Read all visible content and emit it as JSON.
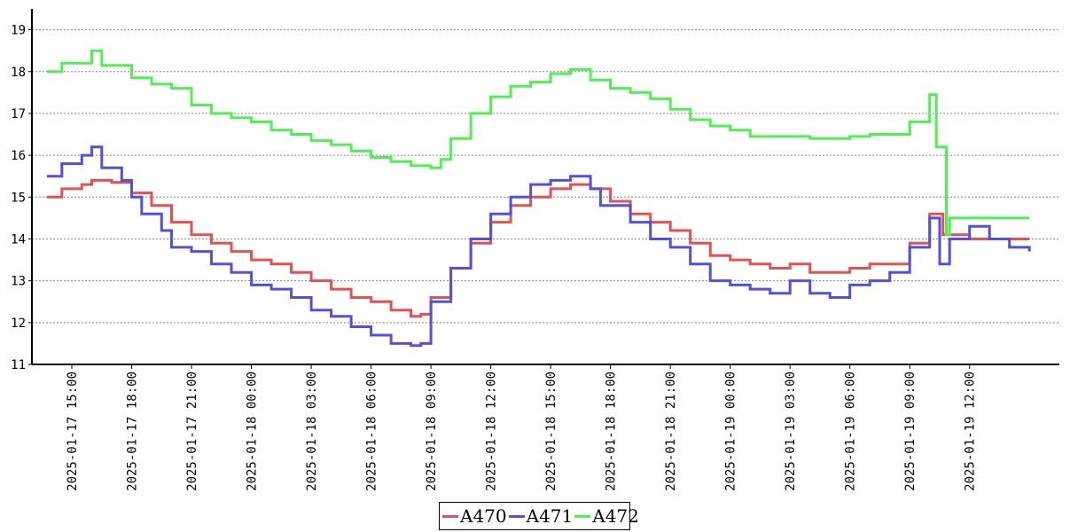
{
  "chart_data": {
    "type": "line",
    "title": "",
    "xlabel": "",
    "ylabel": "",
    "ylim": [
      11,
      19.5
    ],
    "yticks": [
      11,
      12,
      13,
      14,
      15,
      16,
      17,
      18,
      19
    ],
    "y_grid": true,
    "xlim": [
      "2025-01-17 13:00",
      "2025-01-19 16:30"
    ],
    "xticks": [
      "2025-01-17 15:00",
      "2025-01-17 18:00",
      "2025-01-17 21:00",
      "2025-01-18 00:00",
      "2025-01-18 03:00",
      "2025-01-18 06:00",
      "2025-01-18 09:00",
      "2025-01-18 12:00",
      "2025-01-18 15:00",
      "2025-01-18 18:00",
      "2025-01-18 21:00",
      "2025-01-19 00:00",
      "2025-01-19 03:00",
      "2025-01-19 06:00",
      "2025-01-19 09:00",
      "2025-01-19 12:00"
    ],
    "legend_position": "bottom-center",
    "colors": {
      "A470": "#e65050",
      "A471": "#5050e6",
      "A472": "#50f050"
    },
    "series": [
      {
        "name": "A470",
        "points": [
          [
            "2025-01-17 13:45",
            15.0
          ],
          [
            "2025-01-17 14:30",
            15.2
          ],
          [
            "2025-01-17 15:30",
            15.3
          ],
          [
            "2025-01-17 16:00",
            15.4
          ],
          [
            "2025-01-17 17:00",
            15.35
          ],
          [
            "2025-01-17 18:00",
            15.1
          ],
          [
            "2025-01-17 19:00",
            14.8
          ],
          [
            "2025-01-17 20:00",
            14.4
          ],
          [
            "2025-01-17 21:00",
            14.1
          ],
          [
            "2025-01-17 22:00",
            13.9
          ],
          [
            "2025-01-17 23:00",
            13.7
          ],
          [
            "2025-01-18 00:00",
            13.5
          ],
          [
            "2025-01-18 01:00",
            13.4
          ],
          [
            "2025-01-18 02:00",
            13.2
          ],
          [
            "2025-01-18 03:00",
            13.0
          ],
          [
            "2025-01-18 04:00",
            12.8
          ],
          [
            "2025-01-18 05:00",
            12.6
          ],
          [
            "2025-01-18 06:00",
            12.5
          ],
          [
            "2025-01-18 07:00",
            12.3
          ],
          [
            "2025-01-18 08:00",
            12.15
          ],
          [
            "2025-01-18 08:30",
            12.2
          ],
          [
            "2025-01-18 09:00",
            12.6
          ],
          [
            "2025-01-18 10:00",
            13.3
          ],
          [
            "2025-01-18 11:00",
            13.9
          ],
          [
            "2025-01-18 12:00",
            14.4
          ],
          [
            "2025-01-18 13:00",
            14.8
          ],
          [
            "2025-01-18 14:00",
            15.0
          ],
          [
            "2025-01-18 15:00",
            15.2
          ],
          [
            "2025-01-18 16:00",
            15.3
          ],
          [
            "2025-01-18 17:00",
            15.2
          ],
          [
            "2025-01-18 18:00",
            14.9
          ],
          [
            "2025-01-18 19:00",
            14.6
          ],
          [
            "2025-01-18 20:00",
            14.4
          ],
          [
            "2025-01-18 21:00",
            14.2
          ],
          [
            "2025-01-18 22:00",
            13.9
          ],
          [
            "2025-01-18 23:00",
            13.6
          ],
          [
            "2025-01-19 00:00",
            13.5
          ],
          [
            "2025-01-19 01:00",
            13.4
          ],
          [
            "2025-01-19 02:00",
            13.3
          ],
          [
            "2025-01-19 03:00",
            13.4
          ],
          [
            "2025-01-19 04:00",
            13.2
          ],
          [
            "2025-01-19 05:00",
            13.2
          ],
          [
            "2025-01-19 06:00",
            13.3
          ],
          [
            "2025-01-19 07:00",
            13.4
          ],
          [
            "2025-01-19 08:00",
            13.4
          ],
          [
            "2025-01-19 09:00",
            13.9
          ],
          [
            "2025-01-19 10:00",
            14.6
          ],
          [
            "2025-01-19 10:40",
            14.1
          ],
          [
            "2025-01-19 12:00",
            14.0
          ],
          [
            "2025-01-19 14:00",
            14.0
          ],
          [
            "2025-01-19 15:00",
            14.0
          ]
        ]
      },
      {
        "name": "A471",
        "points": [
          [
            "2025-01-17 13:45",
            15.5
          ],
          [
            "2025-01-17 14:30",
            15.8
          ],
          [
            "2025-01-17 15:30",
            16.0
          ],
          [
            "2025-01-17 16:00",
            16.2
          ],
          [
            "2025-01-17 16:30",
            15.7
          ],
          [
            "2025-01-17 17:30",
            15.4
          ],
          [
            "2025-01-17 18:00",
            15.0
          ],
          [
            "2025-01-17 18:30",
            14.6
          ],
          [
            "2025-01-17 19:30",
            14.2
          ],
          [
            "2025-01-17 20:00",
            13.8
          ],
          [
            "2025-01-17 21:00",
            13.7
          ],
          [
            "2025-01-17 22:00",
            13.4
          ],
          [
            "2025-01-17 23:00",
            13.2
          ],
          [
            "2025-01-18 00:00",
            12.9
          ],
          [
            "2025-01-18 01:00",
            12.8
          ],
          [
            "2025-01-18 02:00",
            12.6
          ],
          [
            "2025-01-18 03:00",
            12.3
          ],
          [
            "2025-01-18 04:00",
            12.15
          ],
          [
            "2025-01-18 05:00",
            11.9
          ],
          [
            "2025-01-18 06:00",
            11.7
          ],
          [
            "2025-01-18 07:00",
            11.5
          ],
          [
            "2025-01-18 08:00",
            11.45
          ],
          [
            "2025-01-18 08:30",
            11.5
          ],
          [
            "2025-01-18 09:00",
            12.5
          ],
          [
            "2025-01-18 10:00",
            13.3
          ],
          [
            "2025-01-18 11:00",
            14.0
          ],
          [
            "2025-01-18 12:00",
            14.6
          ],
          [
            "2025-01-18 13:00",
            15.0
          ],
          [
            "2025-01-18 14:00",
            15.3
          ],
          [
            "2025-01-18 15:00",
            15.4
          ],
          [
            "2025-01-18 16:00",
            15.5
          ],
          [
            "2025-01-18 17:00",
            15.2
          ],
          [
            "2025-01-18 17:30",
            14.8
          ],
          [
            "2025-01-18 19:00",
            14.4
          ],
          [
            "2025-01-18 20:00",
            14.0
          ],
          [
            "2025-01-18 21:00",
            13.8
          ],
          [
            "2025-01-18 22:00",
            13.4
          ],
          [
            "2025-01-18 23:00",
            13.0
          ],
          [
            "2025-01-19 00:00",
            12.9
          ],
          [
            "2025-01-19 01:00",
            12.8
          ],
          [
            "2025-01-19 02:00",
            12.7
          ],
          [
            "2025-01-19 03:00",
            13.0
          ],
          [
            "2025-01-19 04:00",
            12.7
          ],
          [
            "2025-01-19 05:00",
            12.6
          ],
          [
            "2025-01-19 06:00",
            12.9
          ],
          [
            "2025-01-19 07:00",
            13.0
          ],
          [
            "2025-01-19 08:00",
            13.2
          ],
          [
            "2025-01-19 09:00",
            13.8
          ],
          [
            "2025-01-19 10:00",
            14.5
          ],
          [
            "2025-01-19 10:30",
            13.4
          ],
          [
            "2025-01-19 11:00",
            14.0
          ],
          [
            "2025-01-19 12:00",
            14.3
          ],
          [
            "2025-01-19 13:00",
            14.0
          ],
          [
            "2025-01-19 14:00",
            13.8
          ],
          [
            "2025-01-19 15:00",
            13.7
          ]
        ]
      },
      {
        "name": "A472",
        "points": [
          [
            "2025-01-17 13:45",
            18.0
          ],
          [
            "2025-01-17 14:30",
            18.2
          ],
          [
            "2025-01-17 15:00",
            18.2
          ],
          [
            "2025-01-17 16:00",
            18.5
          ],
          [
            "2025-01-17 16:30",
            18.15
          ],
          [
            "2025-01-17 18:00",
            17.85
          ],
          [
            "2025-01-17 19:00",
            17.7
          ],
          [
            "2025-01-17 20:00",
            17.6
          ],
          [
            "2025-01-17 21:00",
            17.2
          ],
          [
            "2025-01-17 22:00",
            17.0
          ],
          [
            "2025-01-17 23:00",
            16.9
          ],
          [
            "2025-01-18 00:00",
            16.8
          ],
          [
            "2025-01-18 01:00",
            16.6
          ],
          [
            "2025-01-18 02:00",
            16.5
          ],
          [
            "2025-01-18 03:00",
            16.35
          ],
          [
            "2025-01-18 04:00",
            16.25
          ],
          [
            "2025-01-18 05:00",
            16.1
          ],
          [
            "2025-01-18 06:00",
            15.95
          ],
          [
            "2025-01-18 07:00",
            15.85
          ],
          [
            "2025-01-18 08:00",
            15.75
          ],
          [
            "2025-01-18 09:00",
            15.7
          ],
          [
            "2025-01-18 09:30",
            15.9
          ],
          [
            "2025-01-18 10:00",
            16.4
          ],
          [
            "2025-01-18 11:00",
            17.0
          ],
          [
            "2025-01-18 12:00",
            17.4
          ],
          [
            "2025-01-18 13:00",
            17.65
          ],
          [
            "2025-01-18 14:00",
            17.75
          ],
          [
            "2025-01-18 15:00",
            17.95
          ],
          [
            "2025-01-18 16:00",
            18.05
          ],
          [
            "2025-01-18 17:00",
            17.8
          ],
          [
            "2025-01-18 18:00",
            17.6
          ],
          [
            "2025-01-18 19:00",
            17.5
          ],
          [
            "2025-01-18 20:00",
            17.35
          ],
          [
            "2025-01-18 21:00",
            17.1
          ],
          [
            "2025-01-18 22:00",
            16.85
          ],
          [
            "2025-01-18 23:00",
            16.7
          ],
          [
            "2025-01-19 00:00",
            16.6
          ],
          [
            "2025-01-19 01:00",
            16.45
          ],
          [
            "2025-01-19 02:00",
            16.45
          ],
          [
            "2025-01-19 03:00",
            16.45
          ],
          [
            "2025-01-19 04:00",
            16.4
          ],
          [
            "2025-01-19 05:00",
            16.4
          ],
          [
            "2025-01-19 06:00",
            16.45
          ],
          [
            "2025-01-19 07:00",
            16.5
          ],
          [
            "2025-01-19 08:00",
            16.5
          ],
          [
            "2025-01-19 09:00",
            16.8
          ],
          [
            "2025-01-19 10:00",
            17.45
          ],
          [
            "2025-01-19 10:20",
            16.2
          ],
          [
            "2025-01-19 10:50",
            14.1
          ],
          [
            "2025-01-19 11:00",
            14.5
          ],
          [
            "2025-01-19 12:00",
            14.5
          ],
          [
            "2025-01-19 14:00",
            14.5
          ],
          [
            "2025-01-19 15:00",
            14.5
          ]
        ]
      }
    ]
  }
}
